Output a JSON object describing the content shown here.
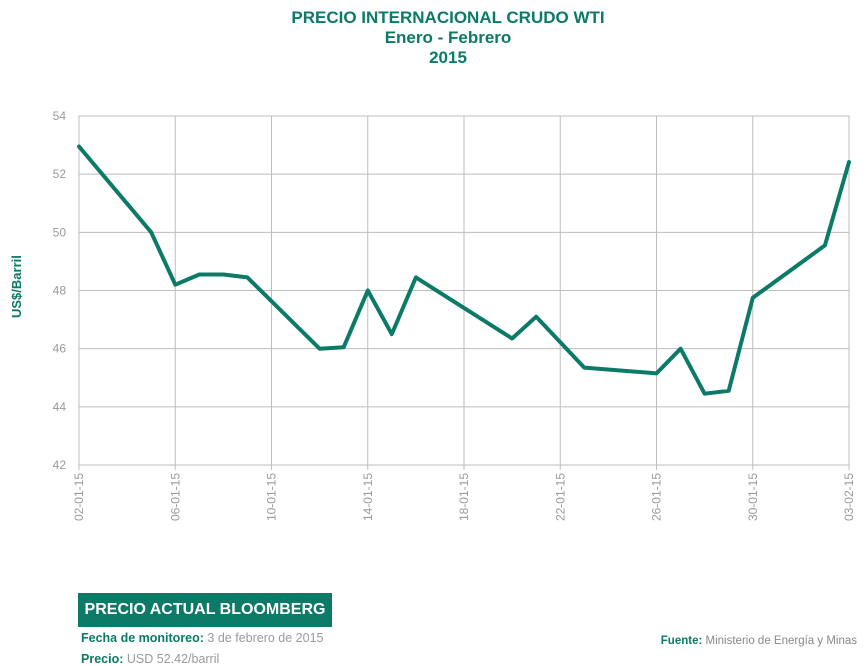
{
  "chart_data": {
    "type": "line",
    "title": "PRECIO INTERNACIONAL CRUDO WTI",
    "subtitle": "Enero - Febrero",
    "subtitle2": "2015",
    "ylabel": "US$/Barril",
    "xlabel": "",
    "ylim": [
      42,
      54
    ],
    "yticks": [
      42,
      44,
      46,
      48,
      50,
      52,
      54
    ],
    "xlim": [
      "2015-01-02",
      "2015-02-03"
    ],
    "xtick_labels": [
      "02-01-15",
      "06-01-15",
      "10-01-15",
      "14-01-15",
      "18-01-15",
      "22-01-15",
      "26-01-15",
      "30-01-15",
      "03-02-15"
    ],
    "xtick_dates": [
      "2015-01-02",
      "2015-01-06",
      "2015-01-10",
      "2015-01-14",
      "2015-01-18",
      "2015-01-22",
      "2015-01-26",
      "2015-01-30",
      "2015-02-03"
    ],
    "grid": true,
    "line_color": "#0b7a66",
    "series": [
      {
        "points": [
          [
            "2015-01-02",
            52.95
          ],
          [
            "2015-01-05",
            50.0
          ],
          [
            "2015-01-06",
            48.2
          ],
          [
            "2015-01-07",
            48.55
          ],
          [
            "2015-01-08",
            48.55
          ],
          [
            "2015-01-09",
            48.45
          ],
          [
            "2015-01-12",
            46.0
          ],
          [
            "2015-01-13",
            46.05
          ],
          [
            "2015-01-14",
            48.0
          ],
          [
            "2015-01-15",
            46.5
          ],
          [
            "2015-01-16",
            48.45
          ],
          [
            "2015-01-20",
            46.35
          ],
          [
            "2015-01-21",
            47.1
          ],
          [
            "2015-01-23",
            45.35
          ],
          [
            "2015-01-26",
            45.15
          ],
          [
            "2015-01-27",
            46.0
          ],
          [
            "2015-01-28",
            44.45
          ],
          [
            "2015-01-29",
            44.55
          ],
          [
            "2015-01-30",
            47.75
          ],
          [
            "2015-02-02",
            49.55
          ],
          [
            "2015-02-03",
            52.42
          ]
        ]
      }
    ]
  },
  "bloomberg": {
    "heading": "PRECIO ACTUAL BLOOMBERG",
    "date_label": "Fecha de monitoreo:",
    "date_value": "3 de febrero de 2015",
    "price_label": "Precio:",
    "price_value": "USD 52.42/barril"
  },
  "source": {
    "label": "Fuente:",
    "value": "Ministerio de Energía y Minas"
  }
}
